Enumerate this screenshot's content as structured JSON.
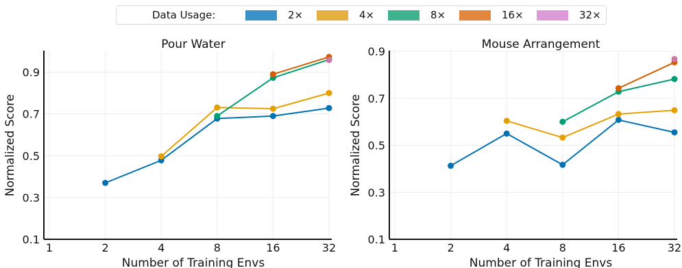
{
  "legend": {
    "title": "Data Usage:",
    "items": [
      {
        "label": "2×",
        "color": "#3a92c9"
      },
      {
        "label": "4×",
        "color": "#e6b040"
      },
      {
        "label": "8×",
        "color": "#3fb38d"
      },
      {
        "label": "16×",
        "color": "#e3873f"
      },
      {
        "label": "32×",
        "color": "#dd9ad9"
      }
    ]
  },
  "chart_data": [
    {
      "type": "line",
      "title": "Pour Water",
      "xlabel": "Number of Training Envs",
      "ylabel": "Normalized Score",
      "x_scale": "log2",
      "x_ticks": [
        1,
        2,
        4,
        8,
        16,
        32
      ],
      "x_tick_labels": [
        "1",
        "2",
        "4",
        "8",
        "16",
        "32"
      ],
      "ylim": [
        0.1,
        1.0
      ],
      "y_ticks": [
        0.1,
        0.3,
        0.5,
        0.7,
        0.9
      ],
      "y_tick_labels": [
        "0.1",
        "0.3",
        "0.5",
        "0.7",
        "0.9"
      ],
      "grid": true,
      "series": [
        {
          "name": "2×",
          "color": "#0072b2",
          "x": [
            2,
            4,
            8,
            16,
            32
          ],
          "y": [
            0.37,
            0.478,
            0.678,
            0.69,
            0.728
          ]
        },
        {
          "name": "4×",
          "color": "#e69f00",
          "x": [
            4,
            8,
            16,
            32
          ],
          "y": [
            0.497,
            0.731,
            0.725,
            0.8
          ]
        },
        {
          "name": "8×",
          "color": "#009e73",
          "x": [
            8,
            16,
            32
          ],
          "y": [
            0.69,
            0.873,
            0.96
          ]
        },
        {
          "name": "16×",
          "color": "#d55e00",
          "x": [
            16,
            32
          ],
          "y": [
            0.89,
            0.973
          ]
        },
        {
          "name": "32×",
          "color": "#cc79a7",
          "x": [
            32
          ],
          "y": [
            0.958
          ]
        }
      ]
    },
    {
      "type": "line",
      "title": "Mouse Arrangement",
      "xlabel": "Number of Training Envs",
      "ylabel": "Normalized Score",
      "x_scale": "log2",
      "x_ticks": [
        1,
        2,
        4,
        8,
        16,
        32
      ],
      "x_tick_labels": [
        "1",
        "2",
        "4",
        "8",
        "16",
        "32"
      ],
      "ylim": [
        0.1,
        0.9
      ],
      "y_ticks": [
        0.1,
        0.3,
        0.5,
        0.7,
        0.9
      ],
      "y_tick_labels": [
        "0.1",
        "0.3",
        "0.5",
        "0.7",
        "0.9"
      ],
      "grid": true,
      "series": [
        {
          "name": "2×",
          "color": "#0072b2",
          "x": [
            2,
            4,
            8,
            16,
            32
          ],
          "y": [
            0.413,
            0.55,
            0.417,
            0.608,
            0.555
          ]
        },
        {
          "name": "4×",
          "color": "#e69f00",
          "x": [
            4,
            8,
            16,
            32
          ],
          "y": [
            0.604,
            0.533,
            0.633,
            0.649
          ]
        },
        {
          "name": "8×",
          "color": "#009e73",
          "x": [
            8,
            16,
            32
          ],
          "y": [
            0.6,
            0.728,
            0.782
          ]
        },
        {
          "name": "16×",
          "color": "#d55e00",
          "x": [
            16,
            32
          ],
          "y": [
            0.743,
            0.853
          ]
        },
        {
          "name": "32×",
          "color": "#cc79a7",
          "x": [
            32
          ],
          "y": [
            0.867
          ]
        }
      ]
    }
  ]
}
